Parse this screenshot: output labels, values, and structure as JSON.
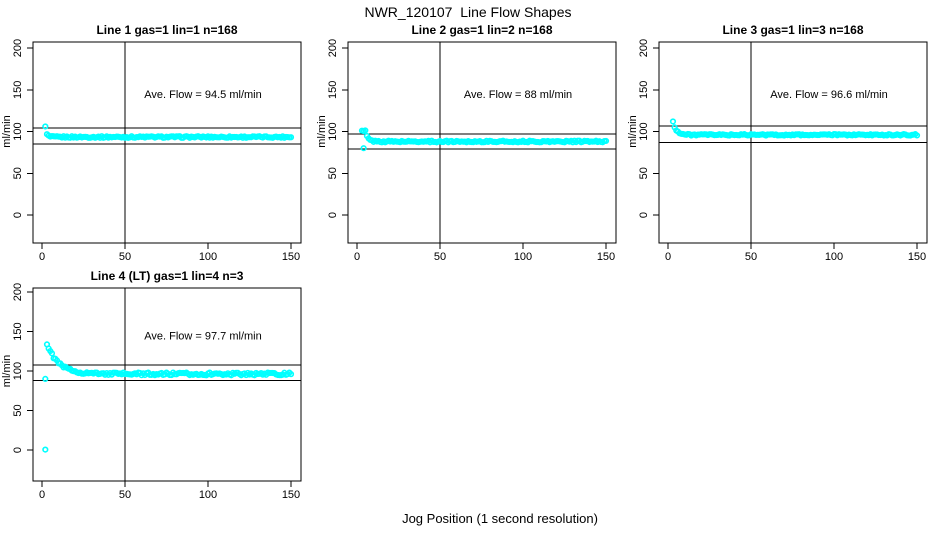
{
  "figure_title": "NWR_120107  Line Flow Shapes",
  "chart_data": {
    "type": "scatter",
    "title": "NWR_120107  Line Flow Shapes",
    "xlabel": "Jog Position (1 second resolution)",
    "ylabel": "ml/min",
    "xlim": [
      0,
      150
    ],
    "ylim": [
      0,
      200
    ],
    "x_ticks": [
      0,
      50,
      100,
      150
    ],
    "y_ticks": [
      0,
      50,
      100,
      150,
      200
    ],
    "point_color": "#00ffff",
    "axis_color": "#000000",
    "vline_x": 50,
    "grid": "off",
    "legend": "none",
    "panels": [
      {
        "title": "Line 1 gas=1 lin=1 n=168",
        "line_number": 1,
        "gas": 1,
        "lin": 1,
        "n": 168,
        "ave_flow": 94.5,
        "ave_flow_label": "Ave. Flow =  94.5  ml/min",
        "ref_lines": [
          104.0,
          85.1
        ],
        "series_model": {
          "start_x": 3,
          "hold_until": 3,
          "peak": 96.5,
          "plateau": 93.4,
          "tau": 1.0,
          "noise": 1.0,
          "end_x": 150,
          "seed": 1
        },
        "outliers": [
          [
            2,
            106
          ]
        ]
      },
      {
        "title": "Line 2 gas=1 lin=2 n=168",
        "line_number": 2,
        "gas": 1,
        "lin": 2,
        "n": 168,
        "ave_flow": 88,
        "ave_flow_label": "Ave. Flow =  88  ml/min",
        "ref_lines": [
          96.8,
          79.2
        ],
        "series_model": {
          "start_x": 3,
          "hold_until": 5,
          "peak": 100.5,
          "plateau": 88.0,
          "tau": 1.5,
          "noise": 1.0,
          "end_x": 150,
          "seed": 2
        },
        "outliers": [
          [
            4,
            80
          ]
        ]
      },
      {
        "title": "Line 3 gas=1 lin=3 n=168",
        "line_number": 3,
        "gas": 1,
        "lin": 3,
        "n": 168,
        "ave_flow": 96.6,
        "ave_flow_label": "Ave. Flow =  96.6  ml/min",
        "ref_lines": [
          106.3,
          86.9
        ],
        "series_model": {
          "start_x": 3,
          "hold_until": 3,
          "peak": 112.0,
          "plateau": 96.0,
          "tau": 2.0,
          "noise": 0.9,
          "end_x": 150,
          "seed": 3
        },
        "outliers": []
      },
      {
        "title": "Line 4 (LT) gas=1 lin=4 n=3",
        "line_number": 4,
        "gas": 1,
        "lin": 4,
        "n": 3,
        "ave_flow": 97.7,
        "ave_flow_label": "Ave. Flow =  97.7  ml/min",
        "ref_lines": [
          107.5,
          87.9
        ],
        "series_model": {
          "start_x": 3,
          "hold_until": 3,
          "peak": 134.0,
          "plateau": 96.3,
          "tau": 7.0,
          "noise": 1.7,
          "end_x": 150,
          "seed": 4
        },
        "outliers": [
          [
            2,
            90
          ],
          [
            2,
            0.5
          ]
        ]
      }
    ]
  }
}
